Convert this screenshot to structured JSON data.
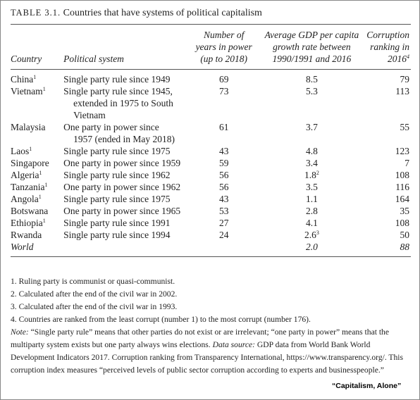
{
  "header": {
    "label": "TABLE 3.1.",
    "title": "Countries that have systems of political capitalism"
  },
  "table": {
    "columns": [
      {
        "lines": [
          "Country"
        ]
      },
      {
        "lines": [
          "Political system"
        ]
      },
      {
        "lines": [
          "Number of",
          "years in power",
          "(up to 2018)"
        ]
      },
      {
        "lines": [
          "Average GDP per capita",
          "growth rate between",
          "1990/1991 and 2016"
        ]
      },
      {
        "lines": [
          "Corruption",
          "ranking in",
          "2016"
        ],
        "note": "4"
      }
    ],
    "rows": [
      {
        "country": "China",
        "note": "1",
        "system": [
          "Single party rule since 1949"
        ],
        "years": "69",
        "gdp": "8.5",
        "rank": "79"
      },
      {
        "country": "Vietnam",
        "note": "1",
        "system": [
          "Single party rule since 1945,",
          "extended in 1975 to South",
          "Vietnam"
        ],
        "years": "73",
        "gdp": "5.3",
        "rank": "113"
      },
      {
        "country": "Malaysia",
        "system": [
          "One party in power since",
          "1957 (ended in May 2018)"
        ],
        "years": "61",
        "gdp": "3.7",
        "rank": "55"
      },
      {
        "country": "Laos",
        "note": "1",
        "system": [
          "Single party rule since 1975"
        ],
        "years": "43",
        "gdp": "4.8",
        "rank": "123"
      },
      {
        "country": "Singapore",
        "system": [
          "One party in power since 1959"
        ],
        "years": "59",
        "gdp": "3.4",
        "rank": "7"
      },
      {
        "country": "Algeria",
        "note": "1",
        "system": [
          "Single party rule since 1962"
        ],
        "years": "56",
        "gdp": "1.8",
        "gdp_note": "2",
        "rank": "108"
      },
      {
        "country": "Tanzania",
        "note": "1",
        "system": [
          "One party in power since 1962"
        ],
        "years": "56",
        "gdp": "3.5",
        "rank": "116"
      },
      {
        "country": "Angola",
        "note": "1",
        "system": [
          "Single party rule since 1975"
        ],
        "years": "43",
        "gdp": "1.1",
        "rank": "164"
      },
      {
        "country": "Botswana",
        "system": [
          "One party in power since 1965"
        ],
        "years": "53",
        "gdp": "2.8",
        "rank": "35"
      },
      {
        "country": "Ethiopia",
        "note": "1",
        "system": [
          "Single party rule since 1991"
        ],
        "years": "27",
        "gdp": "4.1",
        "rank": "108"
      },
      {
        "country": "Rwanda",
        "system": [
          "Single party rule since 1994"
        ],
        "years": "24",
        "gdp": "2.6",
        "gdp_note": "3",
        "rank": "50"
      },
      {
        "country": "World",
        "italic": true,
        "gdp": "2.0",
        "rank": "88"
      }
    ]
  },
  "footnotes": [
    "1. Ruling party is communist or quasi-communist.",
    "2. Calculated after the end of the civil war in 2002.",
    "3. Calculated after the end of the civil war in 1993.",
    "4. Countries are ranked from the least corrupt (number 1) to the most corrupt (number 176)."
  ],
  "note": [
    {
      "text": "Note:",
      "italic": true
    },
    {
      "text": " “Single party rule” means that other parties do not exist or are irrelevant; “one party in power” means that the multiparty system exists but one party always wins elections. "
    },
    {
      "text": "Data source:",
      "italic": true
    },
    {
      "text": " GDP data from World Bank World Development Indicators 2017. Corruption ranking from Transparency International, https://www.transparency.org/. This corruption index measures “perceived levels of public sector corruption according to experts and businesspeople.”"
    }
  ],
  "caption": "“Capitalism, Alone”"
}
